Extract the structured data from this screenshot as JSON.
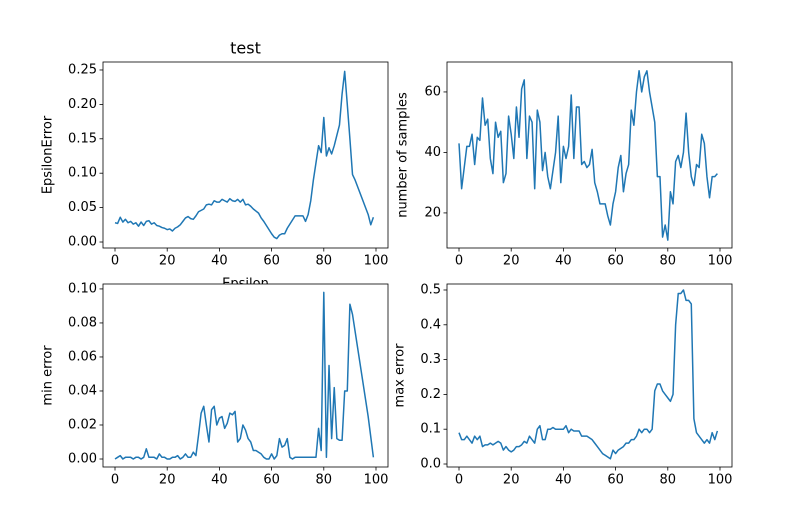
{
  "chart_data": [
    {
      "type": "line",
      "title": "test",
      "xlabel": "Epsilon",
      "ylabel": "EpsilonError",
      "color": "#1f77b4",
      "x": [
        0,
        1,
        2,
        3,
        4,
        5,
        6,
        7,
        8,
        9,
        10,
        11,
        12,
        13,
        14,
        15,
        16,
        17,
        18,
        19,
        20,
        21,
        22,
        23,
        24,
        25,
        26,
        27,
        28,
        29,
        30,
        31,
        32,
        33,
        34,
        35,
        36,
        37,
        38,
        39,
        40,
        41,
        42,
        43,
        44,
        45,
        46,
        47,
        48,
        49,
        50,
        51,
        52,
        53,
        54,
        55,
        56,
        57,
        58,
        59,
        60,
        61,
        62,
        63,
        64,
        65,
        66,
        67,
        68,
        69,
        70,
        71,
        72,
        73,
        74,
        75,
        76,
        77,
        78,
        79,
        80,
        81,
        82,
        83,
        84,
        85,
        86,
        87,
        88,
        89,
        90,
        91,
        92,
        93,
        94,
        95,
        96,
        97,
        98,
        99
      ],
      "values": [
        0.028,
        0.027,
        0.036,
        0.029,
        0.033,
        0.028,
        0.03,
        0.026,
        0.028,
        0.023,
        0.029,
        0.024,
        0.03,
        0.031,
        0.026,
        0.028,
        0.024,
        0.023,
        0.021,
        0.02,
        0.018,
        0.019,
        0.016,
        0.02,
        0.022,
        0.025,
        0.03,
        0.035,
        0.037,
        0.034,
        0.033,
        0.038,
        0.044,
        0.046,
        0.048,
        0.054,
        0.055,
        0.054,
        0.06,
        0.058,
        0.058,
        0.062,
        0.06,
        0.058,
        0.063,
        0.06,
        0.059,
        0.062,
        0.058,
        0.062,
        0.054,
        0.055,
        0.052,
        0.048,
        0.045,
        0.042,
        0.035,
        0.03,
        0.024,
        0.018,
        0.012,
        0.007,
        0.005,
        0.01,
        0.012,
        0.012,
        0.02,
        0.026,
        0.032,
        0.038,
        0.038,
        0.038,
        0.038,
        0.03,
        0.04,
        0.06,
        0.09,
        0.115,
        0.14,
        0.13,
        0.181,
        0.125,
        0.137,
        0.128,
        0.14,
        0.155,
        0.17,
        0.215,
        0.248,
        0.2,
        0.15,
        0.098,
        0.09,
        0.08,
        0.07,
        0.06,
        0.05,
        0.04,
        0.025,
        0.036
      ],
      "xlim": [
        -4.6,
        104.6
      ],
      "ylim": [
        -0.0087,
        0.2616
      ],
      "xticks": [
        0,
        20,
        40,
        60,
        80,
        100
      ],
      "yticks": [
        {
          "value": 0,
          "label": "0.00"
        },
        {
          "value": 0.05,
          "label": "0.05"
        },
        {
          "value": 0.1,
          "label": "0.10"
        },
        {
          "value": 0.15,
          "label": "0.15"
        },
        {
          "value": 0.2,
          "label": "0.20"
        },
        {
          "value": 0.25,
          "label": "0.25"
        }
      ]
    },
    {
      "type": "line",
      "ylabel": "number of samples",
      "color": "#1f77b4",
      "x": [
        0,
        1,
        2,
        3,
        4,
        5,
        6,
        7,
        8,
        9,
        10,
        11,
        12,
        13,
        14,
        15,
        16,
        17,
        18,
        19,
        20,
        21,
        22,
        23,
        24,
        25,
        26,
        27,
        28,
        29,
        30,
        31,
        32,
        33,
        34,
        35,
        36,
        37,
        38,
        39,
        40,
        41,
        42,
        43,
        44,
        45,
        46,
        47,
        48,
        49,
        50,
        51,
        52,
        53,
        54,
        55,
        56,
        57,
        58,
        59,
        60,
        61,
        62,
        63,
        64,
        65,
        66,
        67,
        68,
        69,
        70,
        71,
        72,
        73,
        74,
        75,
        76,
        77,
        78,
        79,
        80,
        81,
        82,
        83,
        84,
        85,
        86,
        87,
        88,
        89,
        90,
        91,
        92,
        93,
        94,
        95,
        96,
        97,
        98,
        99
      ],
      "values": [
        43,
        28,
        35,
        42,
        42,
        46,
        36,
        45,
        44,
        58,
        49,
        51,
        38,
        33,
        50,
        45,
        47,
        30,
        33,
        52,
        46,
        38,
        55,
        45,
        61,
        64,
        38,
        52,
        50,
        28,
        54,
        50,
        34,
        40,
        32,
        28,
        34,
        40,
        52,
        30,
        42,
        38,
        42,
        59,
        38,
        55,
        55,
        36,
        37,
        35,
        36,
        41,
        30,
        27,
        23,
        23,
        23,
        19,
        16,
        23,
        27,
        35,
        39,
        27,
        33,
        36,
        54,
        49,
        60,
        67,
        60,
        65,
        67,
        60,
        55,
        50,
        32,
        32,
        12,
        16,
        11,
        27,
        23,
        37,
        39,
        35,
        40,
        53,
        40,
        32,
        29,
        36,
        35,
        46,
        43,
        32,
        25,
        32,
        32,
        33
      ],
      "xlim": [
        -4.6,
        104.6
      ],
      "ylim": [
        8.4,
        69.9
      ],
      "xticks": [
        0,
        20,
        40,
        60,
        80,
        100
      ],
      "yticks": [
        20,
        40,
        60
      ]
    },
    {
      "type": "line",
      "ylabel": "min error",
      "color": "#1f77b4",
      "x": [
        0,
        1,
        2,
        3,
        4,
        5,
        6,
        7,
        8,
        9,
        10,
        11,
        12,
        13,
        14,
        15,
        16,
        17,
        18,
        19,
        20,
        21,
        22,
        23,
        24,
        25,
        26,
        27,
        28,
        29,
        30,
        31,
        32,
        33,
        34,
        35,
        36,
        37,
        38,
        39,
        40,
        41,
        42,
        43,
        44,
        45,
        46,
        47,
        48,
        49,
        50,
        51,
        52,
        53,
        54,
        55,
        56,
        57,
        58,
        59,
        60,
        61,
        62,
        63,
        64,
        65,
        66,
        67,
        68,
        69,
        70,
        71,
        72,
        73,
        74,
        75,
        76,
        77,
        78,
        79,
        80,
        81,
        82,
        83,
        84,
        85,
        86,
        87,
        88,
        89,
        90,
        91,
        92,
        93,
        94,
        95,
        96,
        97,
        98,
        99
      ],
      "values": [
        0,
        0.001,
        0.002,
        0,
        0.001,
        0.001,
        0.001,
        0,
        0.001,
        0.001,
        0,
        0.001,
        0.006,
        0.001,
        0.001,
        0.001,
        0,
        0.003,
        0.001,
        0.001,
        0,
        0,
        0.001,
        0.001,
        0.002,
        0,
        0.001,
        0.003,
        0.001,
        0.001,
        0.004,
        0.002,
        0.014,
        0.027,
        0.031,
        0.02,
        0.01,
        0.029,
        0.031,
        0.02,
        0.024,
        0.025,
        0.018,
        0.021,
        0.027,
        0.026,
        0.028,
        0.01,
        0.012,
        0.02,
        0.017,
        0.012,
        0.01,
        0.005,
        0.005,
        0.004,
        0.003,
        0.001,
        0,
        0,
        0.003,
        0,
        0.002,
        0.012,
        0.007,
        0.008,
        0.012,
        0.001,
        0,
        0.001,
        0.001,
        0.001,
        0.001,
        0.001,
        0.001,
        0.001,
        0.001,
        0.001,
        0.018,
        0.005,
        0.098,
        0.001,
        0.055,
        0.012,
        0.042,
        0.012,
        0.011,
        0.011,
        0.04,
        0.04,
        0.091,
        0.085,
        0.075,
        0.065,
        0.055,
        0.045,
        0.035,
        0.025,
        0.013,
        0.001
      ],
      "xlim": [
        -4.6,
        104.6
      ],
      "ylim": [
        -0.0047,
        0.1029
      ],
      "xticks": [
        0,
        20,
        40,
        60,
        80,
        100
      ],
      "yticks": [
        {
          "value": 0,
          "label": "0.00"
        },
        {
          "value": 0.02,
          "label": "0.02"
        },
        {
          "value": 0.04,
          "label": "0.04"
        },
        {
          "value": 0.06,
          "label": "0.06"
        },
        {
          "value": 0.08,
          "label": "0.08"
        },
        {
          "value": 0.1,
          "label": "0.10"
        }
      ]
    },
    {
      "type": "line",
      "ylabel": "max error",
      "color": "#1f77b4",
      "x": [
        0,
        1,
        2,
        3,
        4,
        5,
        6,
        7,
        8,
        9,
        10,
        11,
        12,
        13,
        14,
        15,
        16,
        17,
        18,
        19,
        20,
        21,
        22,
        23,
        24,
        25,
        26,
        27,
        28,
        29,
        30,
        31,
        32,
        33,
        34,
        35,
        36,
        37,
        38,
        39,
        40,
        41,
        42,
        43,
        44,
        45,
        46,
        47,
        48,
        49,
        50,
        51,
        52,
        53,
        54,
        55,
        56,
        57,
        58,
        59,
        60,
        61,
        62,
        63,
        64,
        65,
        66,
        67,
        68,
        69,
        70,
        71,
        72,
        73,
        74,
        75,
        76,
        77,
        78,
        79,
        80,
        81,
        82,
        83,
        84,
        85,
        86,
        87,
        88,
        89,
        90,
        91,
        92,
        93,
        94,
        95,
        96,
        97,
        98,
        99
      ],
      "values": [
        0.09,
        0.07,
        0.07,
        0.08,
        0.07,
        0.06,
        0.08,
        0.07,
        0.08,
        0.05,
        0.055,
        0.055,
        0.06,
        0.055,
        0.06,
        0.065,
        0.06,
        0.04,
        0.05,
        0.04,
        0.035,
        0.04,
        0.05,
        0.05,
        0.055,
        0.065,
        0.06,
        0.08,
        0.07,
        0.06,
        0.1,
        0.11,
        0.07,
        0.07,
        0.1,
        0.1,
        0.105,
        0.1,
        0.1,
        0.1,
        0.1,
        0.11,
        0.09,
        0.1,
        0.095,
        0.095,
        0.095,
        0.08,
        0.08,
        0.08,
        0.075,
        0.07,
        0.06,
        0.05,
        0.04,
        0.03,
        0.025,
        0.02,
        0.015,
        0.04,
        0.03,
        0.04,
        0.045,
        0.05,
        0.06,
        0.06,
        0.07,
        0.07,
        0.08,
        0.1,
        0.09,
        0.1,
        0.1,
        0.09,
        0.1,
        0.21,
        0.23,
        0.23,
        0.21,
        0.2,
        0.19,
        0.18,
        0.2,
        0.4,
        0.49,
        0.49,
        0.5,
        0.47,
        0.47,
        0.46,
        0.13,
        0.09,
        0.08,
        0.07,
        0.06,
        0.07,
        0.06,
        0.09,
        0.07,
        0.095
      ],
      "xlim": [
        -4.6,
        104.6
      ],
      "ylim": [
        -0.0086,
        0.5172
      ],
      "xticks": [
        0,
        20,
        40,
        60,
        80,
        100
      ],
      "yticks": [
        {
          "value": 0,
          "label": "0.0"
        },
        {
          "value": 0.1,
          "label": "0.1"
        },
        {
          "value": 0.2,
          "label": "0.2"
        },
        {
          "value": 0.3,
          "label": "0.3"
        },
        {
          "value": 0.4,
          "label": "0.4"
        },
        {
          "value": 0.5,
          "label": "0.5"
        }
      ]
    }
  ]
}
